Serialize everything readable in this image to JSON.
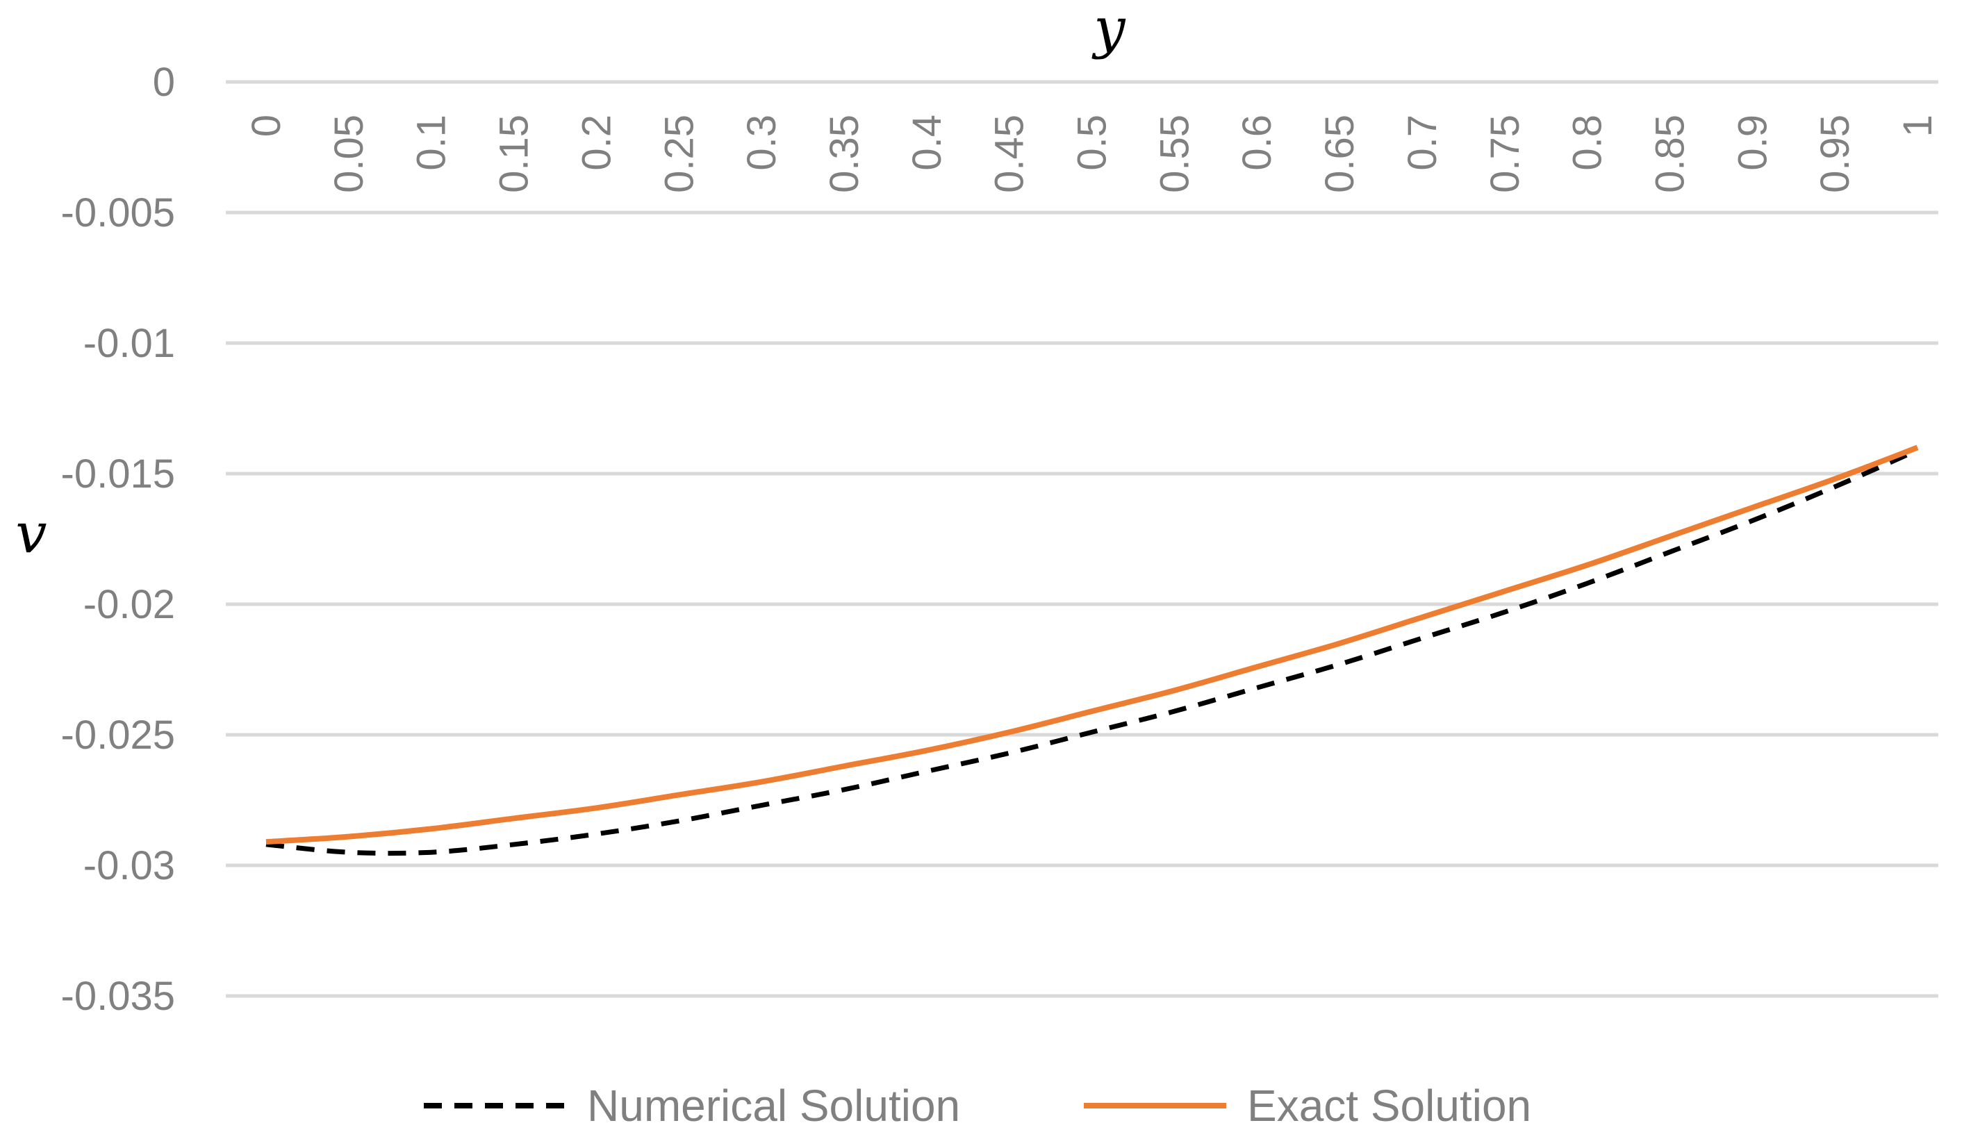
{
  "chart_data": {
    "type": "line",
    "title": "",
    "xlabel": "y",
    "ylabel": "v",
    "x_axis_position": "top",
    "x_tick_labels": [
      "0",
      "0.05",
      "0.1",
      "0.15",
      "0.2",
      "0.25",
      "0.3",
      "0.35",
      "0.4",
      "0.45",
      "0.5",
      "0.55",
      "0.6",
      "0.65",
      "0.7",
      "0.75",
      "0.8",
      "0.85",
      "0.9",
      "0.95",
      "1"
    ],
    "y_tick_labels": [
      "0",
      "-0.005",
      "-0.01",
      "-0.015",
      "-0.02",
      "-0.025",
      "-0.03",
      "-0.035"
    ],
    "ylim": [
      -0.035,
      0
    ],
    "xlim": [
      0,
      1
    ],
    "grid": "horizontal",
    "legend_position": "bottom",
    "x": [
      0,
      0.05,
      0.1,
      0.15,
      0.2,
      0.25,
      0.3,
      0.35,
      0.4,
      0.45,
      0.5,
      0.55,
      0.6,
      0.65,
      0.7,
      0.75,
      0.8,
      0.85,
      0.9,
      0.95,
      1
    ],
    "series": [
      {
        "name": "Numerical Solution",
        "color": "#000000",
        "style": "dashed",
        "values": [
          -0.0292,
          -0.0295,
          -0.0295,
          -0.0292,
          -0.0288,
          -0.0283,
          -0.0277,
          -0.0271,
          -0.0264,
          -0.0257,
          -0.0249,
          -0.0241,
          -0.0232,
          -0.0223,
          -0.0213,
          -0.0203,
          -0.0192,
          -0.018,
          -0.0168,
          -0.0155,
          -0.0141
        ]
      },
      {
        "name": "Exact Solution",
        "color": "#ed7d31",
        "style": "solid",
        "values": [
          -0.0291,
          -0.0289,
          -0.0286,
          -0.0282,
          -0.0278,
          -0.0273,
          -0.0268,
          -0.0262,
          -0.0256,
          -0.0249,
          -0.0241,
          -0.0233,
          -0.0224,
          -0.0215,
          -0.0205,
          -0.0195,
          -0.0185,
          -0.0174,
          -0.0163,
          -0.0152,
          -0.014
        ]
      }
    ]
  }
}
